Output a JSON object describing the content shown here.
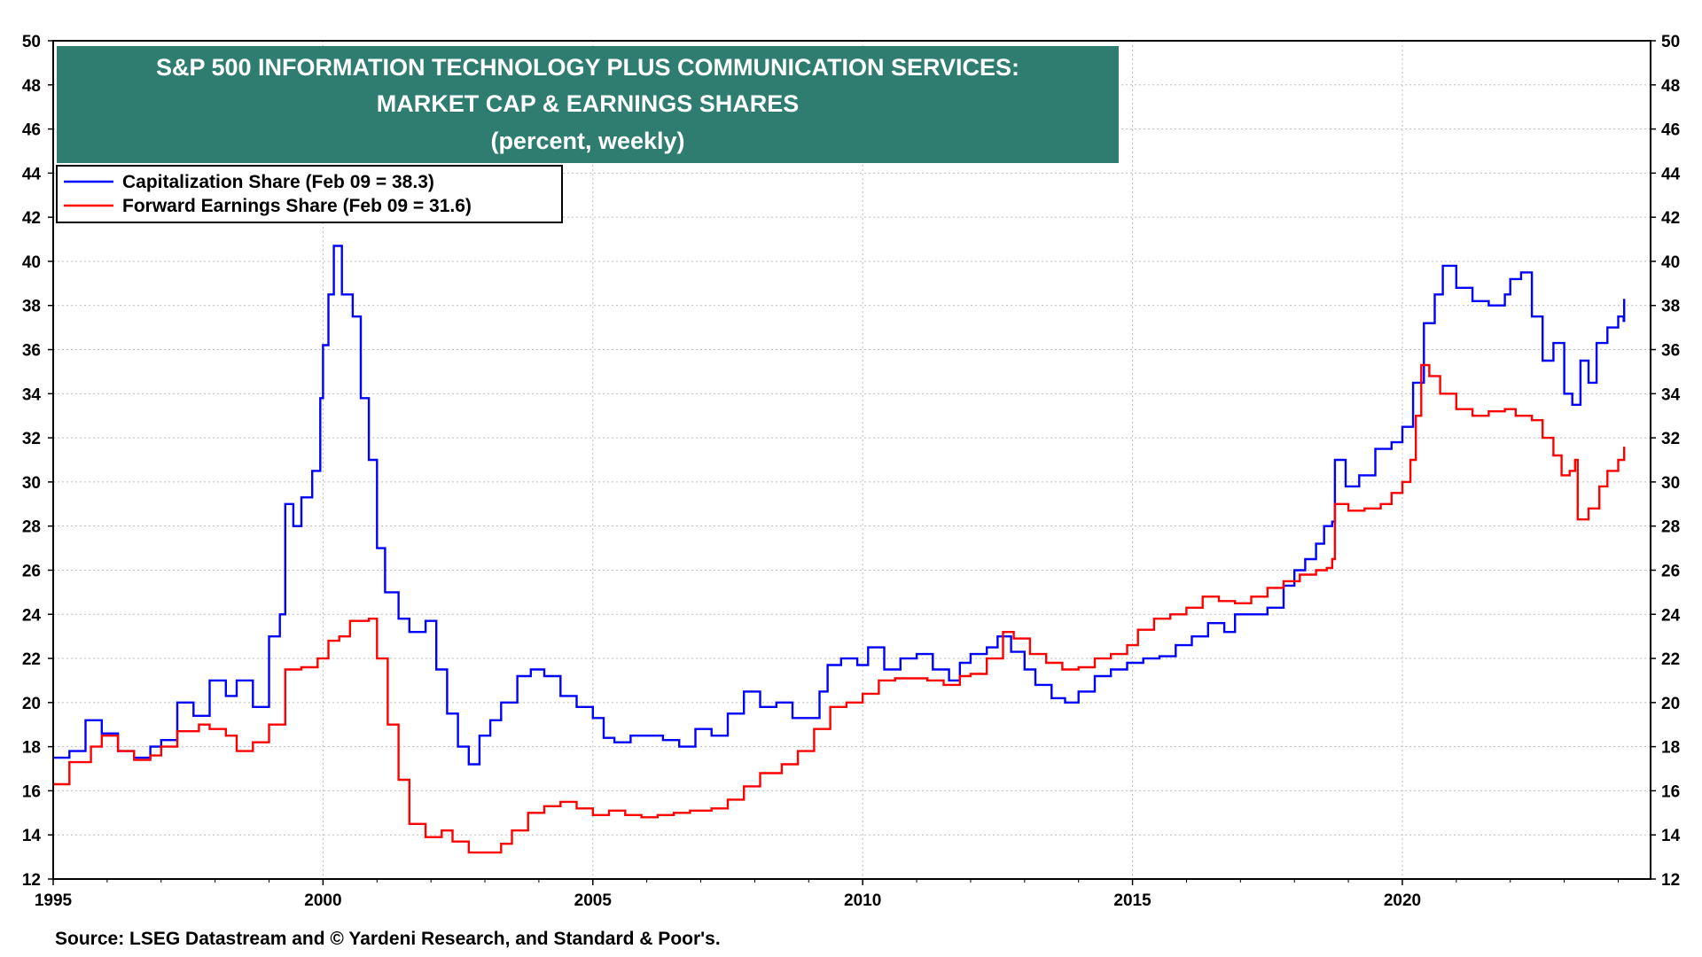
{
  "chart_data": {
    "type": "line",
    "title_lines": [
      "S&P 500 INFORMATION TECHNOLOGY PLUS COMMUNICATION SERVICES:",
      "MARKET CAP & EARNINGS SHARES",
      "(percent, weekly)"
    ],
    "source": "Source: LSEG Datastream and © Yardeni Research, and Standard & Poor's.",
    "xlim": [
      1995,
      2024.6
    ],
    "ylim": [
      12,
      50
    ],
    "x_ticks": [
      "1995",
      "2000",
      "2005",
      "2010",
      "2015",
      "2020"
    ],
    "y_ticks": [
      "12",
      "14",
      "16",
      "18",
      "20",
      "22",
      "24",
      "26",
      "28",
      "30",
      "32",
      "34",
      "36",
      "38",
      "40",
      "42",
      "44",
      "46",
      "48",
      "50"
    ],
    "grid": true,
    "legend_position": "top-left",
    "series": [
      {
        "name": "Capitalization Share  (Feb 09 = 38.3)",
        "color": "#0000ff",
        "points": [
          [
            1995.0,
            17.5
          ],
          [
            1995.3,
            17.8
          ],
          [
            1995.6,
            19.2
          ],
          [
            1995.9,
            18.6
          ],
          [
            1996.2,
            17.8
          ],
          [
            1996.5,
            17.5
          ],
          [
            1996.8,
            18.0
          ],
          [
            1997.0,
            18.3
          ],
          [
            1997.3,
            20.0
          ],
          [
            1997.6,
            19.4
          ],
          [
            1997.9,
            21.0
          ],
          [
            1998.2,
            20.3
          ],
          [
            1998.4,
            21.0
          ],
          [
            1998.7,
            19.8
          ],
          [
            1999.0,
            23.0
          ],
          [
            1999.2,
            24.0
          ],
          [
            1999.3,
            29.0
          ],
          [
            1999.45,
            28.0
          ],
          [
            1999.6,
            29.3
          ],
          [
            1999.8,
            30.5
          ],
          [
            1999.95,
            33.8
          ],
          [
            2000.0,
            36.2
          ],
          [
            2000.1,
            38.5
          ],
          [
            2000.2,
            40.7
          ],
          [
            2000.35,
            38.5
          ],
          [
            2000.55,
            37.5
          ],
          [
            2000.7,
            33.8
          ],
          [
            2000.85,
            31.0
          ],
          [
            2001.0,
            27.0
          ],
          [
            2001.15,
            25.0
          ],
          [
            2001.4,
            23.8
          ],
          [
            2001.6,
            23.2
          ],
          [
            2001.9,
            23.7
          ],
          [
            2002.1,
            21.5
          ],
          [
            2002.3,
            19.5
          ],
          [
            2002.5,
            18.0
          ],
          [
            2002.7,
            17.2
          ],
          [
            2002.9,
            18.5
          ],
          [
            2003.1,
            19.2
          ],
          [
            2003.3,
            20.0
          ],
          [
            2003.6,
            21.2
          ],
          [
            2003.85,
            21.5
          ],
          [
            2004.1,
            21.2
          ],
          [
            2004.4,
            20.3
          ],
          [
            2004.7,
            19.8
          ],
          [
            2005.0,
            19.3
          ],
          [
            2005.2,
            18.4
          ],
          [
            2005.4,
            18.2
          ],
          [
            2005.7,
            18.5
          ],
          [
            2006.0,
            18.5
          ],
          [
            2006.3,
            18.3
          ],
          [
            2006.6,
            18.0
          ],
          [
            2006.9,
            18.8
          ],
          [
            2007.2,
            18.5
          ],
          [
            2007.5,
            19.5
          ],
          [
            2007.8,
            20.5
          ],
          [
            2008.1,
            19.8
          ],
          [
            2008.4,
            20.0
          ],
          [
            2008.7,
            19.3
          ],
          [
            2009.0,
            19.3
          ],
          [
            2009.2,
            20.5
          ],
          [
            2009.35,
            21.7
          ],
          [
            2009.6,
            22.0
          ],
          [
            2009.9,
            21.7
          ],
          [
            2010.1,
            22.5
          ],
          [
            2010.4,
            21.5
          ],
          [
            2010.7,
            22.0
          ],
          [
            2011.0,
            22.2
          ],
          [
            2011.3,
            21.5
          ],
          [
            2011.6,
            21.0
          ],
          [
            2011.8,
            21.8
          ],
          [
            2012.0,
            22.2
          ],
          [
            2012.3,
            22.5
          ],
          [
            2012.5,
            23.0
          ],
          [
            2012.75,
            22.3
          ],
          [
            2013.0,
            21.5
          ],
          [
            2013.2,
            20.8
          ],
          [
            2013.5,
            20.2
          ],
          [
            2013.75,
            20.0
          ],
          [
            2014.0,
            20.5
          ],
          [
            2014.3,
            21.2
          ],
          [
            2014.6,
            21.5
          ],
          [
            2014.9,
            21.8
          ],
          [
            2015.2,
            22.0
          ],
          [
            2015.5,
            22.1
          ],
          [
            2015.8,
            22.6
          ],
          [
            2016.1,
            23.0
          ],
          [
            2016.4,
            23.6
          ],
          [
            2016.7,
            23.2
          ],
          [
            2016.9,
            24.0
          ],
          [
            2017.2,
            24.0
          ],
          [
            2017.5,
            24.3
          ],
          [
            2017.8,
            25.3
          ],
          [
            2018.0,
            26.0
          ],
          [
            2018.2,
            26.5
          ],
          [
            2018.4,
            27.2
          ],
          [
            2018.55,
            28.0
          ],
          [
            2018.7,
            28.2
          ],
          [
            2018.75,
            31.0
          ],
          [
            2018.95,
            29.8
          ],
          [
            2019.2,
            30.3
          ],
          [
            2019.5,
            31.5
          ],
          [
            2019.8,
            31.8
          ],
          [
            2020.0,
            32.5
          ],
          [
            2020.2,
            34.5
          ],
          [
            2020.4,
            37.2
          ],
          [
            2020.6,
            38.5
          ],
          [
            2020.75,
            39.8
          ],
          [
            2021.0,
            38.8
          ],
          [
            2021.3,
            38.2
          ],
          [
            2021.6,
            38.0
          ],
          [
            2021.9,
            38.5
          ],
          [
            2022.0,
            39.2
          ],
          [
            2022.2,
            39.5
          ],
          [
            2022.4,
            37.5
          ],
          [
            2022.6,
            35.5
          ],
          [
            2022.8,
            36.3
          ],
          [
            2023.0,
            34.0
          ],
          [
            2023.15,
            33.5
          ],
          [
            2023.3,
            35.5
          ],
          [
            2023.45,
            34.5
          ],
          [
            2023.6,
            36.3
          ],
          [
            2023.8,
            37.0
          ],
          [
            2024.0,
            37.5
          ],
          [
            2024.1,
            37.3
          ],
          [
            2024.11,
            38.3
          ]
        ]
      },
      {
        "name": "Forward Earnings Share (Feb 09 = 31.6)",
        "color": "#ff0000",
        "points": [
          [
            1995.0,
            16.3
          ],
          [
            1995.3,
            17.3
          ],
          [
            1995.7,
            18.0
          ],
          [
            1995.9,
            18.5
          ],
          [
            1996.2,
            17.8
          ],
          [
            1996.5,
            17.4
          ],
          [
            1996.8,
            17.6
          ],
          [
            1997.0,
            18.0
          ],
          [
            1997.3,
            18.7
          ],
          [
            1997.7,
            19.0
          ],
          [
            1997.9,
            18.8
          ],
          [
            1998.2,
            18.5
          ],
          [
            1998.4,
            17.8
          ],
          [
            1998.7,
            18.2
          ],
          [
            1999.0,
            19.0
          ],
          [
            1999.3,
            21.5
          ],
          [
            1999.6,
            21.6
          ],
          [
            1999.9,
            22.0
          ],
          [
            2000.1,
            22.8
          ],
          [
            2000.3,
            23.0
          ],
          [
            2000.5,
            23.7
          ],
          [
            2000.85,
            23.8
          ],
          [
            2001.0,
            22.0
          ],
          [
            2001.2,
            19.0
          ],
          [
            2001.4,
            16.5
          ],
          [
            2001.6,
            14.5
          ],
          [
            2001.9,
            13.9
          ],
          [
            2002.2,
            14.2
          ],
          [
            2002.4,
            13.7
          ],
          [
            2002.7,
            13.2
          ],
          [
            2003.0,
            13.2
          ],
          [
            2003.3,
            13.6
          ],
          [
            2003.5,
            14.2
          ],
          [
            2003.8,
            15.0
          ],
          [
            2004.1,
            15.3
          ],
          [
            2004.4,
            15.5
          ],
          [
            2004.7,
            15.2
          ],
          [
            2005.0,
            14.9
          ],
          [
            2005.3,
            15.1
          ],
          [
            2005.6,
            14.9
          ],
          [
            2005.9,
            14.8
          ],
          [
            2006.2,
            14.9
          ],
          [
            2006.5,
            15.0
          ],
          [
            2006.8,
            15.1
          ],
          [
            2007.2,
            15.2
          ],
          [
            2007.5,
            15.6
          ],
          [
            2007.8,
            16.2
          ],
          [
            2008.1,
            16.8
          ],
          [
            2008.5,
            17.2
          ],
          [
            2008.8,
            17.8
          ],
          [
            2009.1,
            18.8
          ],
          [
            2009.4,
            19.8
          ],
          [
            2009.7,
            20.0
          ],
          [
            2010.0,
            20.4
          ],
          [
            2010.3,
            21.0
          ],
          [
            2010.6,
            21.1
          ],
          [
            2010.9,
            21.1
          ],
          [
            2011.2,
            21.0
          ],
          [
            2011.5,
            20.8
          ],
          [
            2011.8,
            21.2
          ],
          [
            2012.0,
            21.3
          ],
          [
            2012.3,
            22.0
          ],
          [
            2012.6,
            23.2
          ],
          [
            2012.8,
            22.9
          ],
          [
            2013.1,
            22.2
          ],
          [
            2013.4,
            21.8
          ],
          [
            2013.7,
            21.5
          ],
          [
            2014.0,
            21.6
          ],
          [
            2014.3,
            22.0
          ],
          [
            2014.6,
            22.2
          ],
          [
            2014.9,
            22.6
          ],
          [
            2015.1,
            23.3
          ],
          [
            2015.4,
            23.8
          ],
          [
            2015.7,
            24.0
          ],
          [
            2016.0,
            24.3
          ],
          [
            2016.3,
            24.8
          ],
          [
            2016.6,
            24.6
          ],
          [
            2016.9,
            24.5
          ],
          [
            2017.2,
            24.8
          ],
          [
            2017.5,
            25.2
          ],
          [
            2017.8,
            25.5
          ],
          [
            2018.1,
            25.8
          ],
          [
            2018.4,
            26.0
          ],
          [
            2018.6,
            26.1
          ],
          [
            2018.7,
            26.5
          ],
          [
            2018.75,
            29.0
          ],
          [
            2019.0,
            28.7
          ],
          [
            2019.3,
            28.8
          ],
          [
            2019.6,
            29.0
          ],
          [
            2019.8,
            29.5
          ],
          [
            2020.0,
            30.0
          ],
          [
            2020.15,
            31.0
          ],
          [
            2020.25,
            33.0
          ],
          [
            2020.35,
            35.3
          ],
          [
            2020.5,
            34.8
          ],
          [
            2020.7,
            34.0
          ],
          [
            2021.0,
            33.3
          ],
          [
            2021.3,
            33.0
          ],
          [
            2021.6,
            33.2
          ],
          [
            2021.9,
            33.3
          ],
          [
            2022.1,
            33.0
          ],
          [
            2022.4,
            32.8
          ],
          [
            2022.6,
            32.0
          ],
          [
            2022.8,
            31.2
          ],
          [
            2022.95,
            30.3
          ],
          [
            2023.1,
            30.5
          ],
          [
            2023.2,
            31.0
          ],
          [
            2023.25,
            28.3
          ],
          [
            2023.45,
            28.8
          ],
          [
            2023.65,
            29.8
          ],
          [
            2023.8,
            30.5
          ],
          [
            2024.0,
            31.0
          ],
          [
            2024.11,
            31.6
          ]
        ]
      }
    ]
  }
}
